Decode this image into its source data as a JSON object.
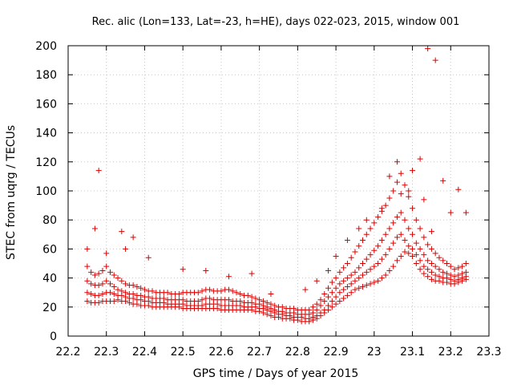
{
  "chart_data": {
    "type": "scatter",
    "title": "Rec. alic (Lon=133, Lat=-23, h=HE), days 022-023, 2015, window 001",
    "xlabel": "GPS time / Days of year 2015",
    "ylabel": "STEC from uqrg / TECUs",
    "xlim": [
      22.2,
      23.3
    ],
    "ylim": [
      0,
      200
    ],
    "xticks": [
      "22.2",
      "22.3",
      "22.4",
      "22.5",
      "22.6",
      "22.7",
      "22.8",
      "22.9",
      "23",
      "23.1",
      "23.2",
      "23.3"
    ],
    "yticks": [
      "0",
      "20",
      "40",
      "60",
      "80",
      "100",
      "120",
      "140",
      "160",
      "180",
      "200"
    ],
    "grid": true,
    "marker": "+",
    "color": "#dd0000",
    "series": [
      {
        "x": [
          22.25,
          22.26,
          22.27,
          22.28,
          22.29,
          22.3,
          22.31,
          22.32,
          22.33,
          22.34,
          22.35,
          22.36,
          22.37,
          22.38,
          22.39,
          22.4,
          22.41,
          22.42,
          22.43,
          22.44,
          22.45,
          22.46,
          22.47,
          22.48,
          22.49,
          22.5,
          22.51,
          22.52,
          22.53,
          22.54,
          22.55,
          22.56,
          22.57,
          22.58,
          22.59,
          22.6,
          22.61,
          22.62,
          22.63,
          22.64,
          22.65,
          22.66,
          22.67,
          22.68,
          22.69,
          22.7,
          22.71,
          22.72,
          22.73,
          22.74,
          22.75,
          22.76,
          22.77,
          22.78,
          22.79,
          22.8,
          22.81,
          22.82,
          22.83,
          22.84,
          22.85,
          22.86,
          22.87,
          22.88,
          22.89,
          22.9,
          22.91,
          22.92,
          22.93,
          22.94,
          22.95,
          22.96,
          22.97,
          22.98,
          22.99,
          23.0,
          23.01,
          23.02,
          23.03,
          23.04,
          23.05,
          23.06,
          23.07,
          23.08,
          23.09,
          23.1,
          23.11,
          23.12,
          23.13,
          23.14,
          23.15,
          23.16,
          23.17,
          23.18,
          23.19,
          23.2,
          23.21,
          23.22,
          23.23,
          23.24
        ],
        "y": [
          24,
          23,
          23,
          23,
          24,
          24,
          24,
          24,
          25,
          24,
          24,
          23,
          22,
          22,
          21,
          21,
          21,
          20,
          20,
          20,
          20,
          20,
          20,
          20,
          20,
          19,
          19,
          19,
          19,
          19,
          19,
          19,
          19,
          19,
          19,
          18,
          18,
          18,
          18,
          18,
          18,
          18,
          18,
          18,
          17,
          17,
          16,
          15,
          14,
          13,
          13,
          12,
          12,
          12,
          11,
          11,
          10,
          10,
          10,
          11,
          12,
          14,
          16,
          18,
          20,
          22,
          24,
          26,
          28,
          30,
          32,
          33,
          34,
          35,
          36,
          37,
          38,
          40,
          42,
          45,
          48,
          52,
          55,
          58,
          57,
          55,
          50,
          46,
          43,
          41,
          39,
          38,
          38,
          37,
          37,
          36,
          36,
          37,
          38,
          39
        ]
      },
      {
        "x": [
          22.25,
          22.26,
          22.27,
          22.28,
          22.29,
          22.3,
          22.31,
          22.32,
          22.33,
          22.34,
          22.35,
          22.36,
          22.37,
          22.38,
          22.39,
          22.4,
          22.41,
          22.42,
          22.43,
          22.44,
          22.45,
          22.46,
          22.47,
          22.48,
          22.49,
          22.5,
          22.51,
          22.52,
          22.53,
          22.54,
          22.55,
          22.56,
          22.57,
          22.58,
          22.59,
          22.6,
          22.61,
          22.62,
          22.63,
          22.64,
          22.65,
          22.66,
          22.67,
          22.68,
          22.69,
          22.7,
          22.71,
          22.72,
          22.73,
          22.74,
          22.75,
          22.76,
          22.77,
          22.78,
          22.79,
          22.8,
          22.81,
          22.82,
          22.83,
          22.84,
          22.85,
          22.86,
          22.87,
          22.88,
          22.89,
          22.9,
          22.91,
          22.92,
          22.93,
          22.94,
          22.95,
          22.96,
          22.97,
          22.98,
          22.99,
          23.0,
          23.01,
          23.02,
          23.03,
          23.04,
          23.05,
          23.06,
          23.07,
          23.08,
          23.09,
          23.1,
          23.11,
          23.12,
          23.13,
          23.14,
          23.15,
          23.16,
          23.17,
          23.18,
          23.19,
          23.2,
          23.21,
          23.22,
          23.23,
          23.24
        ],
        "y": [
          30,
          29,
          28,
          28,
          29,
          30,
          30,
          29,
          28,
          28,
          27,
          26,
          26,
          25,
          25,
          24,
          24,
          23,
          23,
          23,
          23,
          22,
          22,
          22,
          22,
          22,
          21,
          21,
          21,
          21,
          21,
          22,
          22,
          22,
          22,
          21,
          21,
          21,
          21,
          21,
          21,
          20,
          20,
          20,
          20,
          19,
          19,
          18,
          17,
          16,
          15,
          15,
          14,
          14,
          13,
          13,
          13,
          12,
          12,
          13,
          14,
          16,
          18,
          21,
          24,
          27,
          30,
          32,
          34,
          36,
          38,
          40,
          42,
          44,
          46,
          48,
          50,
          53,
          56,
          60,
          64,
          68,
          70,
          66,
          62,
          60,
          56,
          52,
          48,
          46,
          44,
          42,
          41,
          40,
          40,
          39,
          38,
          39,
          40,
          41
        ]
      },
      {
        "x": [
          22.25,
          22.26,
          22.27,
          22.28,
          22.29,
          22.3,
          22.31,
          22.32,
          22.33,
          22.34,
          22.35,
          22.36,
          22.37,
          22.38,
          22.39,
          22.4,
          22.41,
          22.42,
          22.43,
          22.44,
          22.45,
          22.46,
          22.47,
          22.48,
          22.49,
          22.5,
          22.51,
          22.52,
          22.53,
          22.54,
          22.55,
          22.56,
          22.57,
          22.58,
          22.59,
          22.6,
          22.61,
          22.62,
          22.63,
          22.64,
          22.65,
          22.66,
          22.67,
          22.68,
          22.69,
          22.7,
          22.71,
          22.72,
          22.73,
          22.74,
          22.75,
          22.76,
          22.77,
          22.78,
          22.79,
          22.8,
          22.81,
          22.82,
          22.83,
          22.84,
          22.85,
          22.86,
          22.87,
          22.88,
          22.89,
          22.9,
          22.91,
          22.92,
          22.93,
          22.94,
          22.95,
          22.96,
          22.97,
          22.98,
          22.99,
          23.0,
          23.01,
          23.02,
          23.03,
          23.04,
          23.05,
          23.06,
          23.07,
          23.08,
          23.09,
          23.1,
          23.11,
          23.12,
          23.13,
          23.14,
          23.15,
          23.16,
          23.17,
          23.18,
          23.19,
          23.2,
          23.21,
          23.22,
          23.23,
          23.24
        ],
        "y": [
          38,
          36,
          35,
          35,
          36,
          38,
          36,
          34,
          32,
          31,
          30,
          29,
          29,
          28,
          28,
          27,
          27,
          26,
          26,
          26,
          26,
          25,
          25,
          25,
          25,
          25,
          24,
          24,
          24,
          24,
          25,
          26,
          26,
          25,
          25,
          25,
          25,
          25,
          24,
          24,
          24,
          23,
          23,
          23,
          22,
          22,
          21,
          20,
          19,
          18,
          17,
          17,
          16,
          16,
          16,
          15,
          15,
          15,
          15,
          16,
          18,
          21,
          24,
          27,
          30,
          33,
          36,
          38,
          40,
          42,
          44,
          47,
          50,
          53,
          56,
          59,
          62,
          66,
          70,
          74,
          78,
          82,
          85,
          80,
          74,
          70,
          64,
          60,
          56,
          52,
          50,
          48,
          46,
          44,
          43,
          42,
          41,
          42,
          43,
          44
        ]
      },
      {
        "x": [
          22.25,
          22.26,
          22.27,
          22.28,
          22.29,
          22.3,
          22.31,
          22.32,
          22.33,
          22.34,
          22.35,
          22.36,
          22.37,
          22.38,
          22.39,
          22.4,
          22.41,
          22.42,
          22.43,
          22.44,
          22.45,
          22.46,
          22.47,
          22.48,
          22.49,
          22.5,
          22.51,
          22.52,
          22.53,
          22.54,
          22.55,
          22.56,
          22.57,
          22.58,
          22.59,
          22.6,
          22.61,
          22.62,
          22.63,
          22.64,
          22.65,
          22.66,
          22.67,
          22.68,
          22.69,
          22.7,
          22.71,
          22.72,
          22.73,
          22.74,
          22.75,
          22.76,
          22.77,
          22.78,
          22.79,
          22.8,
          22.81,
          22.82,
          22.83,
          22.84,
          22.85,
          22.86,
          22.87,
          22.88,
          22.89,
          22.9,
          22.91,
          22.92,
          22.93,
          22.94,
          22.95,
          22.96,
          22.97,
          22.98,
          22.99,
          23.0,
          23.01,
          23.02,
          23.03,
          23.04,
          23.05,
          23.06,
          23.07,
          23.08,
          23.09,
          23.1,
          23.11,
          23.12,
          23.13,
          23.14,
          23.15,
          23.16,
          23.17,
          23.18,
          23.19,
          23.2,
          23.21,
          23.22,
          23.23,
          23.24
        ],
        "y": [
          48,
          44,
          42,
          43,
          45,
          48,
          44,
          42,
          40,
          38,
          36,
          35,
          35,
          34,
          33,
          32,
          31,
          31,
          30,
          30,
          30,
          30,
          29,
          29,
          29,
          30,
          30,
          30,
          30,
          30,
          31,
          32,
          32,
          31,
          31,
          31,
          32,
          32,
          31,
          30,
          29,
          28,
          28,
          27,
          26,
          25,
          24,
          23,
          22,
          21,
          20,
          20,
          19,
          19,
          19,
          18,
          18,
          18,
          18,
          20,
          22,
          25,
          29,
          33,
          37,
          40,
          44,
          47,
          50,
          54,
          58,
          62,
          66,
          70,
          74,
          78,
          82,
          86,
          90,
          95,
          100,
          106,
          112,
          104,
          96,
          88,
          80,
          74,
          68,
          63,
          60,
          57,
          54,
          52,
          50,
          48,
          46,
          47,
          48,
          50
        ]
      },
      {
        "x": [
          22.25,
          22.27,
          22.28,
          22.3,
          22.34,
          22.35,
          22.37,
          22.41,
          22.5,
          22.56,
          22.62,
          22.68,
          22.73,
          22.82,
          22.85,
          22.88,
          22.9,
          22.93,
          22.96,
          22.98,
          23.02,
          23.04,
          23.06,
          23.07,
          23.09,
          23.1,
          23.12,
          23.13,
          23.14,
          23.15,
          23.16,
          23.18,
          23.2,
          23.22,
          23.24
        ],
        "y": [
          60,
          74,
          114,
          57,
          72,
          60,
          68,
          54,
          46,
          45,
          41,
          43,
          29,
          32,
          38,
          45,
          55,
          66,
          74,
          80,
          88,
          110,
          120,
          98,
          100,
          114,
          122,
          94,
          198,
          72,
          190,
          107,
          85,
          101,
          85
        ]
      }
    ]
  }
}
